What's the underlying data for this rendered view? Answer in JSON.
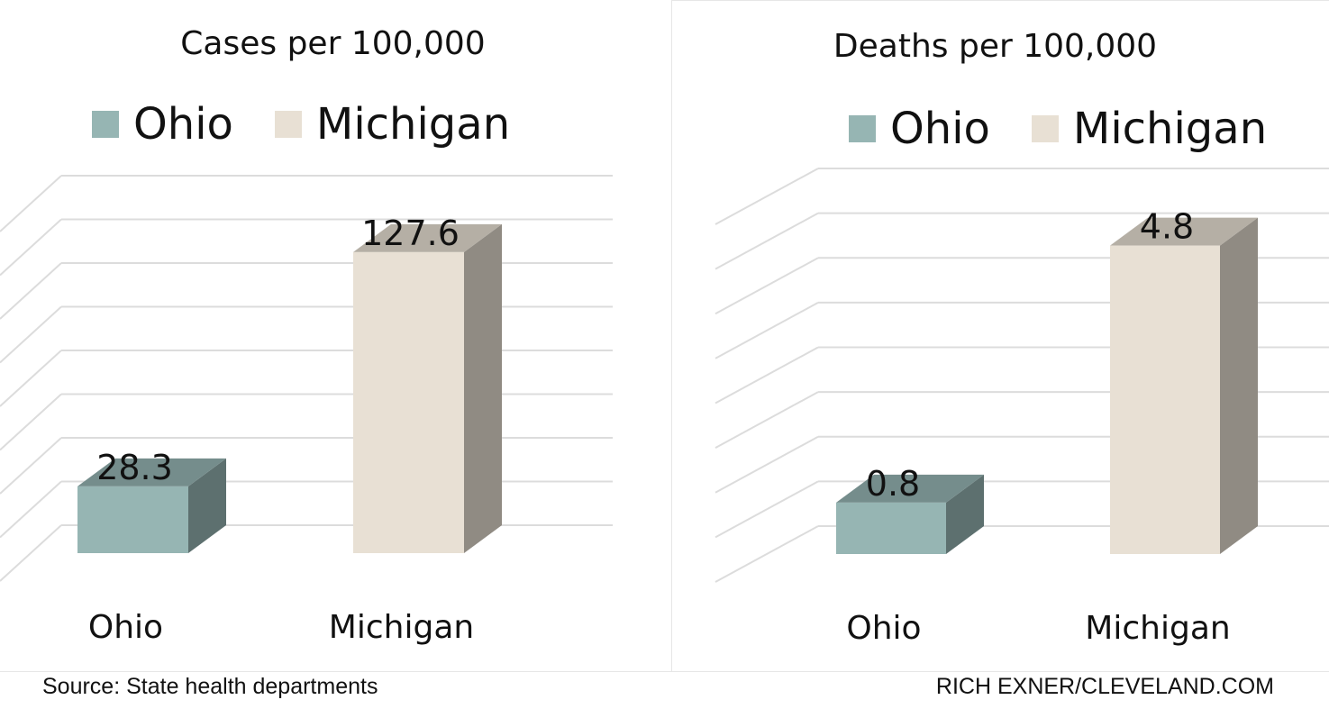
{
  "chart_data": [
    {
      "type": "bar",
      "title": "Cases per 100,000",
      "categories": [
        "Ohio",
        "Michigan"
      ],
      "values": [
        28.3,
        127.6
      ],
      "data_labels": [
        "28.3",
        "127.6"
      ],
      "series_colors": [
        "#96b5b3",
        "#e8e0d4"
      ],
      "legend": [
        "Ohio",
        "Michigan"
      ],
      "legend_position": "top",
      "ylim": [
        0,
        160
      ],
      "grid": true,
      "three_d": true
    },
    {
      "type": "bar",
      "title": "Deaths per 100,000",
      "categories": [
        "Ohio",
        "Michigan"
      ],
      "values": [
        0.8,
        4.8
      ],
      "data_labels": [
        "0.8",
        "4.8"
      ],
      "series_colors": [
        "#96b5b3",
        "#e8e0d4"
      ],
      "legend": [
        "Ohio",
        "Michigan"
      ],
      "legend_position": "top",
      "ylim": [
        0,
        6
      ],
      "grid": true,
      "three_d": true
    }
  ],
  "footer": {
    "source": "Source: State health departments",
    "credit": "RICH EXNER/CLEVELAND.COM"
  }
}
